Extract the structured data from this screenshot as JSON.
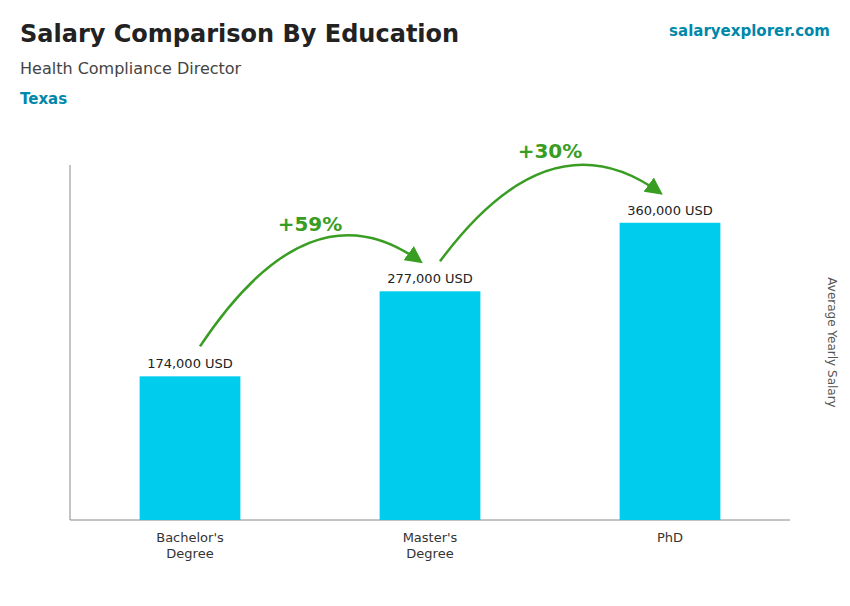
{
  "chart_data": {
    "type": "bar",
    "title": "Salary Comparison By Education",
    "subtitle": "Health Compliance Director",
    "annotations": [
      "+59%",
      "+30%",
      "Texas",
      "salaryexplorer.com"
    ],
    "ylabel": "Average Yearly Salary",
    "categories": [
      "Bachelor's\nDegree",
      "Master's\nDegree",
      "PhD"
    ],
    "values": [
      174000,
      277000,
      360000
    ],
    "value_labels": [
      "174,000 USD",
      "277,000 USD",
      "360,000 USD"
    ],
    "data_labels": true,
    "color": "#00ccee",
    "ylim": [
      0,
      430000
    ],
    "tick_labels": "x",
    "grid": false
  }
}
